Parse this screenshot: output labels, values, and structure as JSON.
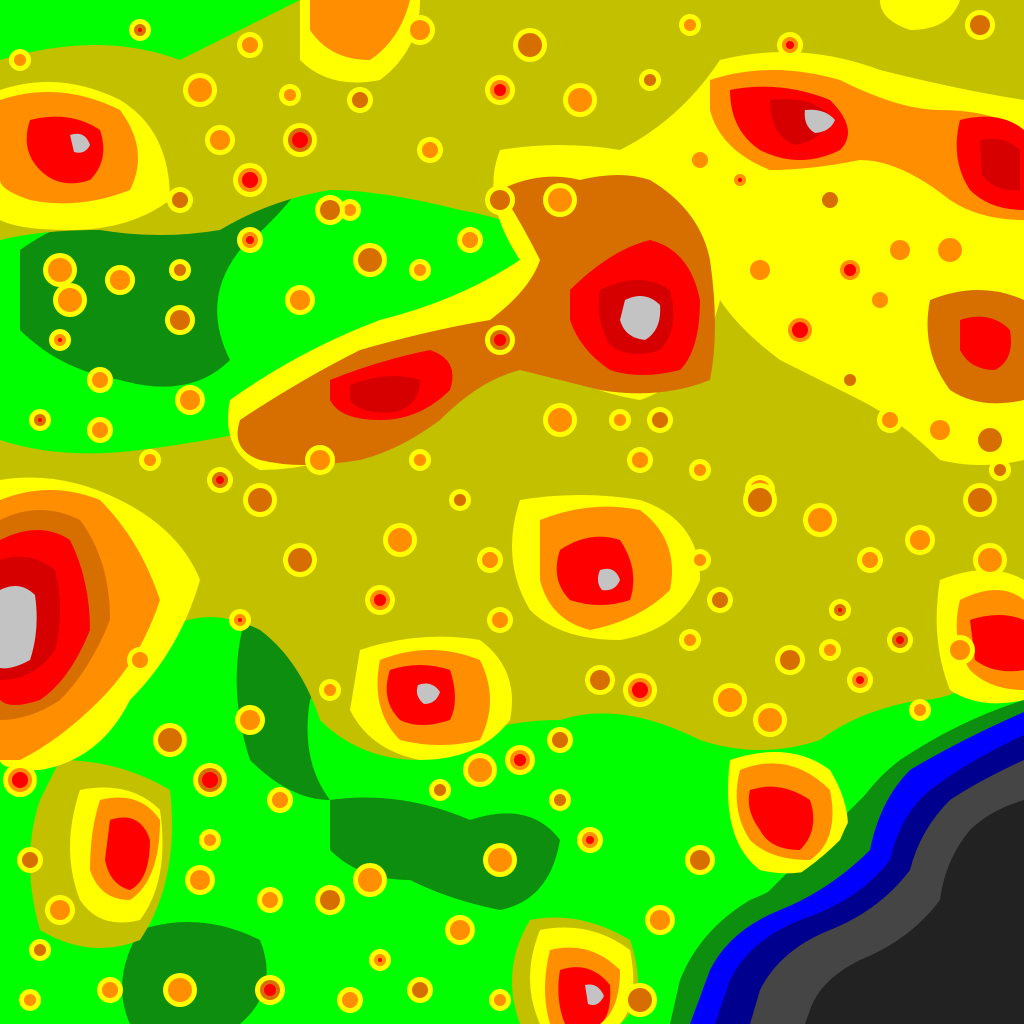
{
  "map": {
    "type": "light-pollution-contour-map",
    "background": "#0e8e0e",
    "legend_colors": [
      {
        "level": 0,
        "name": "dark-gray",
        "hex": "#222222"
      },
      {
        "level": 1,
        "name": "gray",
        "hex": "#454545"
      },
      {
        "level": 2,
        "name": "navy",
        "hex": "#00008e"
      },
      {
        "level": 3,
        "name": "blue",
        "hex": "#0000ff"
      },
      {
        "level": 4,
        "name": "dark-green",
        "hex": "#0e8e0e"
      },
      {
        "level": 5,
        "name": "green",
        "hex": "#00ff00"
      },
      {
        "level": 6,
        "name": "olive",
        "hex": "#c3c000"
      },
      {
        "level": 7,
        "name": "yellow",
        "hex": "#ffff00"
      },
      {
        "level": 8,
        "name": "orange",
        "hex": "#ff8e00"
      },
      {
        "level": 9,
        "name": "dark-orange",
        "hex": "#d76f00"
      },
      {
        "level": 10,
        "name": "red",
        "hex": "#ff0000"
      },
      {
        "level": 11,
        "name": "dark-red",
        "hex": "#d70000"
      },
      {
        "level": 12,
        "name": "light-gray",
        "hex": "#c3c3c3"
      }
    ]
  }
}
